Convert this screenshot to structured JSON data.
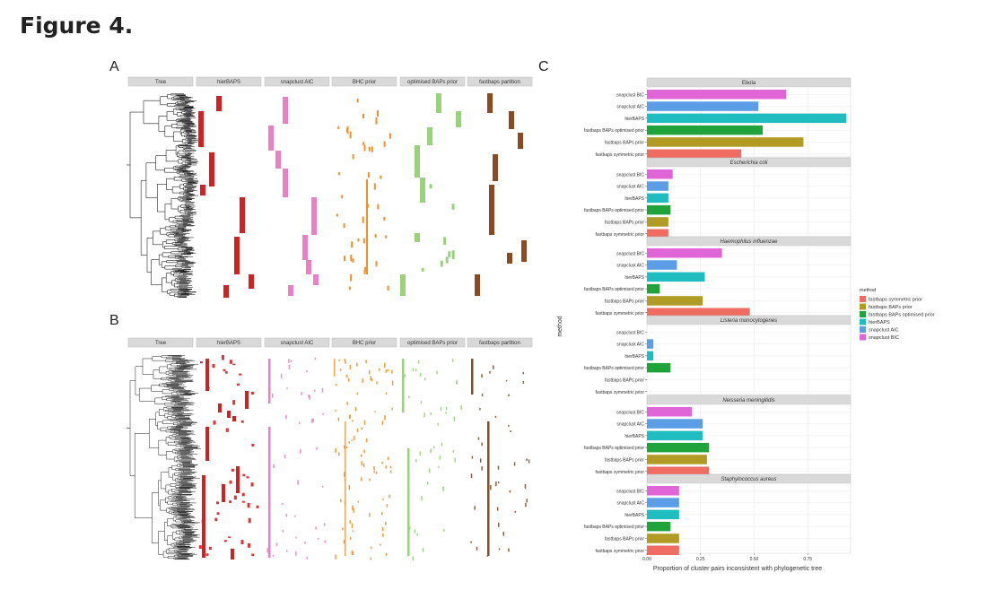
{
  "figure": {
    "title": "Figure 4."
  },
  "panel_a": {
    "letter": "A",
    "strips": [
      "Tree",
      "hierBAPS",
      "snapclust AIC",
      "BHC prior",
      "optimised BAPs prior",
      "fastbaps partition"
    ]
  },
  "panel_b": {
    "letter": "B",
    "strips": [
      "Tree",
      "hierBAPS",
      "snapclust AIC",
      "BHC prior",
      "optimised BAPs prior",
      "fastbaps partition"
    ]
  },
  "panel_c": {
    "letter": "C"
  },
  "chart_data": {
    "type": "bar",
    "orientation": "horizontal",
    "xlabel": "Proportion of cluster pairs inconsistent with phylogenetic tree",
    "ylabel": "method",
    "xlim": [
      0,
      0.95
    ],
    "xticks": [
      0,
      0.25,
      0.5,
      0.75
    ],
    "xtick_labels": [
      "0.00",
      "0.25",
      "0.50",
      "0.75"
    ],
    "grid": true,
    "categories": [
      "snapclust BIC",
      "snapclust AIC",
      "hierBAPS",
      "fastbaps BAPs optimised prior",
      "fastbaps BAPs prior",
      "fastbaps symmetric prior"
    ],
    "category_colors": [
      "#e066d8",
      "#5b9ee6",
      "#1fbcc0",
      "#1fa33a",
      "#b29b25",
      "#ef6c62"
    ],
    "facets": [
      {
        "name": "Ebola",
        "values": [
          0.65,
          0.52,
          0.93,
          0.54,
          0.73,
          0.44
        ]
      },
      {
        "name": "Escherichia coli",
        "values": [
          0.12,
          0.1,
          0.1,
          0.11,
          0.1,
          0.1
        ]
      },
      {
        "name": "Haemophilus influenzae",
        "values": [
          0.35,
          0.14,
          0.27,
          0.06,
          0.26,
          0.48
        ]
      },
      {
        "name": "Listeria monocytogenes",
        "values": [
          0,
          0.03,
          0.03,
          0.11,
          0,
          0
        ]
      },
      {
        "name": "Neisseria meningitidis",
        "values": [
          0.21,
          0.26,
          0.26,
          0.29,
          0.28,
          0.29
        ]
      },
      {
        "name": "Staphylococcus aureus",
        "values": [
          0.15,
          0.15,
          0.15,
          0.11,
          0.15,
          0.15
        ]
      }
    ],
    "legend": {
      "title": "method",
      "position": "right",
      "entries": [
        "fastbaps symmetric prior",
        "fastbaps BAPs prior",
        "fastbaps BAPs optimised prior",
        "hierBAPS",
        "snapclust AIC",
        "snapclust BIC"
      ],
      "colors": [
        "#ef6c62",
        "#b29b25",
        "#1fa33a",
        "#1fbcc0",
        "#5b9ee6",
        "#e066d8"
      ]
    }
  },
  "colors": {
    "hierBAPS": "#d42020",
    "snapclust": "#ec7fc2",
    "bhc": "#f28f2b",
    "optimised": "#98d27a",
    "fastbaps": "#8b4a22",
    "strip_bg": "#d9d9d9",
    "grid": "#ececec"
  }
}
